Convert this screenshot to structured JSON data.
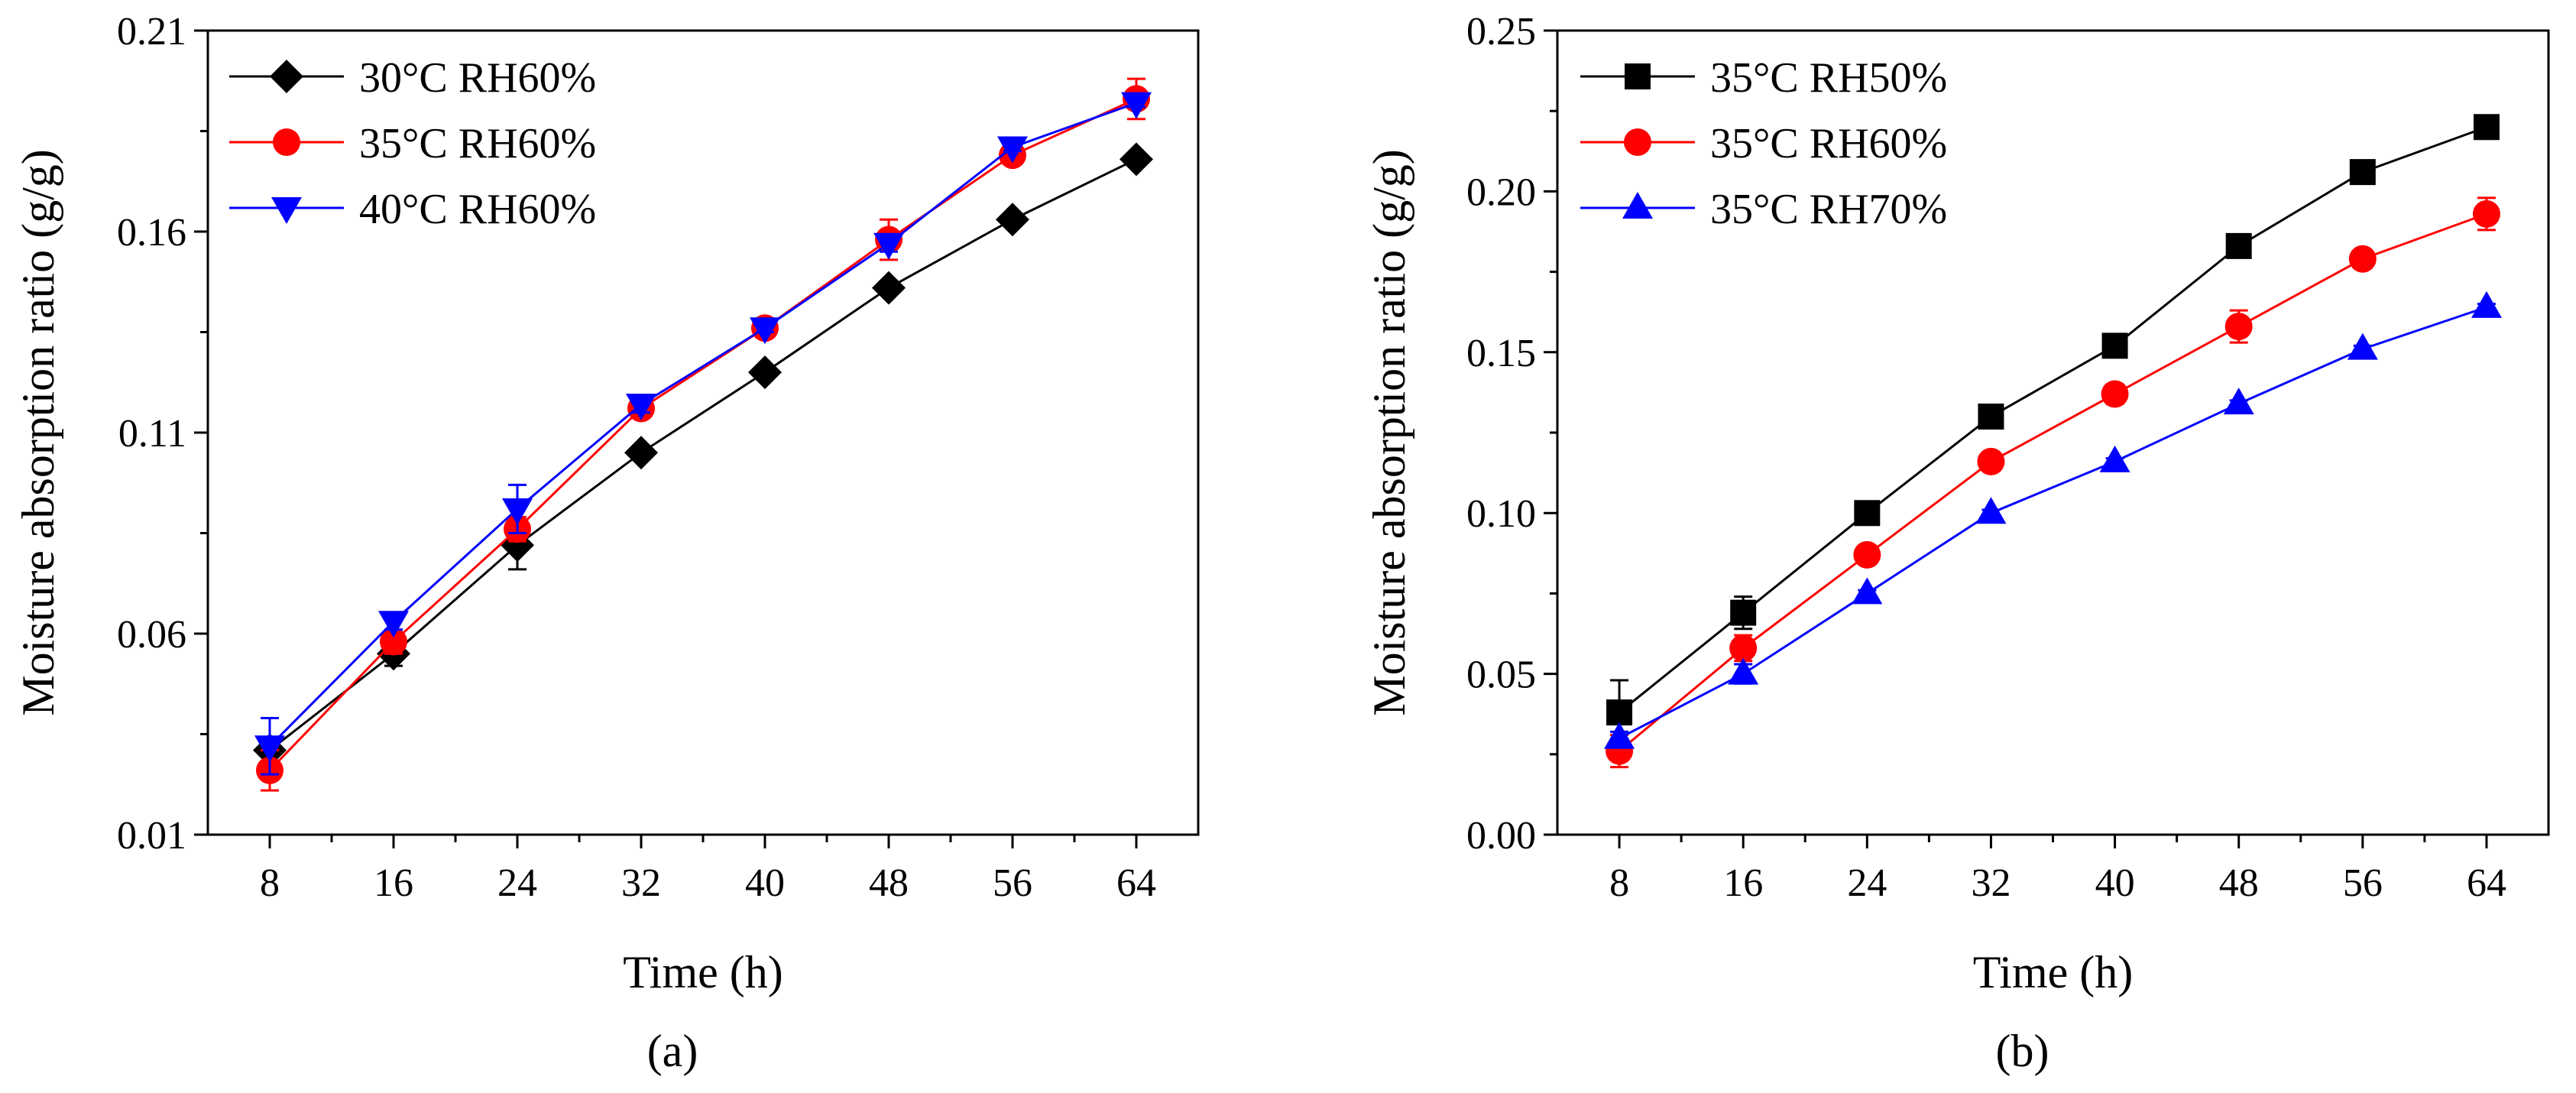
{
  "figure": {
    "panels": [
      "(a)",
      "(b)"
    ]
  },
  "chart_data": [
    {
      "type": "line",
      "panel_label": "(a)",
      "title": "",
      "xlabel": "Time (h)",
      "ylabel": "Moisture absorption ratio (g/g)",
      "x": [
        8,
        16,
        24,
        32,
        40,
        48,
        56,
        64
      ],
      "xticks": [
        "8",
        "16",
        "24",
        "32",
        "40",
        "48",
        "56",
        "64"
      ],
      "ylim": [
        0.01,
        0.21
      ],
      "yticks": [
        0.01,
        0.06,
        0.11,
        0.16,
        0.21
      ],
      "ytick_labels": [
        "0.01",
        "0.06",
        "0.11",
        "0.16",
        "0.21"
      ],
      "legend_position": "top-left",
      "series": [
        {
          "name": "30°C RH60%",
          "color": "#000000",
          "marker": "diamond",
          "values": [
            0.031,
            0.055,
            0.082,
            0.105,
            0.125,
            0.146,
            0.163,
            0.178
          ],
          "errors": [
            0.003,
            0.003,
            0.006,
            0.001,
            0.001,
            0.001,
            0.001,
            0.001
          ]
        },
        {
          "name": "35°C RH60%",
          "color": "#ff0000",
          "marker": "circle",
          "values": [
            0.026,
            0.058,
            0.086,
            0.116,
            0.136,
            0.158,
            0.179,
            0.193
          ],
          "errors": [
            0.005,
            0.003,
            0.003,
            0.002,
            0.002,
            0.005,
            0.002,
            0.005
          ]
        },
        {
          "name": "40°C RH60%",
          "color": "#0000ff",
          "marker": "triangle-down",
          "values": [
            0.032,
            0.063,
            0.091,
            0.117,
            0.136,
            0.157,
            0.181,
            0.192
          ],
          "errors": [
            0.007,
            0.002,
            0.006,
            0.002,
            0.001,
            0.002,
            0.001,
            0.001
          ]
        }
      ]
    },
    {
      "type": "line",
      "panel_label": "(b)",
      "title": "",
      "xlabel": "Time (h)",
      "ylabel": "Moisture absorption ratio (g/g)",
      "x": [
        8,
        16,
        24,
        32,
        40,
        48,
        56,
        64
      ],
      "xticks": [
        "8",
        "16",
        "24",
        "32",
        "40",
        "48",
        "56",
        "64"
      ],
      "ylim": [
        0.0,
        0.25
      ],
      "yticks": [
        0.0,
        0.05,
        0.1,
        0.15,
        0.2,
        0.25
      ],
      "ytick_labels": [
        "0.00",
        "0.05",
        "0.10",
        "0.15",
        "0.20",
        "0.25"
      ],
      "legend_position": "top-left",
      "series": [
        {
          "name": "35°C RH50%",
          "color": "#000000",
          "marker": "square",
          "values": [
            0.038,
            0.069,
            0.1,
            0.13,
            0.152,
            0.183,
            0.206,
            0.22
          ],
          "errors": [
            0.01,
            0.005,
            0.001,
            0.001,
            0.001,
            0.001,
            0.001,
            0.001
          ]
        },
        {
          "name": "35°C RH60%",
          "color": "#ff0000",
          "marker": "circle",
          "values": [
            0.026,
            0.058,
            0.087,
            0.116,
            0.137,
            0.158,
            0.179,
            0.193
          ],
          "errors": [
            0.005,
            0.004,
            0.001,
            0.001,
            0.003,
            0.005,
            0.001,
            0.005
          ]
        },
        {
          "name": "35°C RH70%",
          "color": "#0000ff",
          "marker": "triangle-up",
          "values": [
            0.03,
            0.05,
            0.075,
            0.1,
            0.116,
            0.134,
            0.151,
            0.164
          ],
          "errors": [
            0.002,
            0.003,
            0.001,
            0.001,
            0.001,
            0.001,
            0.001,
            0.001
          ]
        }
      ]
    }
  ]
}
